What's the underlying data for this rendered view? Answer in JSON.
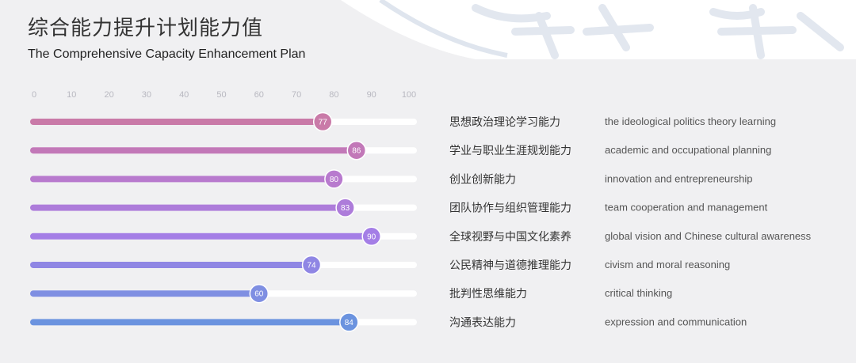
{
  "header": {
    "title_cn": "综合能力提升计划能力值",
    "title_en": "The Comprehensive Capacity Enhancement Plan"
  },
  "chart_data": {
    "type": "bar",
    "orientation": "horizontal",
    "xlim": [
      0,
      100
    ],
    "x_ticks": [
      "0",
      "10",
      "20",
      "30",
      "40",
      "50",
      "60",
      "70",
      "80",
      "90",
      "100"
    ],
    "categories": [
      "思想政治理论学习能力",
      "学业与职业生涯规划能力",
      "创业创新能力",
      "团队协作与组织管理能力",
      "全球视野与中国文化素养",
      "公民精神与道德推理能力",
      "批判性思维能力",
      "沟通表达能力"
    ],
    "categories_en": [
      "the ideological politics theory learning",
      "academic and occupational planning",
      "innovation and entrepreneurship",
      "team cooperation and management",
      "global vision and Chinese cultural awareness",
      "civism and moral reasoning",
      "critical thinking",
      "expression and communication"
    ],
    "values": [
      77,
      86,
      80,
      83,
      90,
      74,
      60,
      84
    ],
    "bar_colors": [
      "#c97aa8",
      "#c278b8",
      "#b87ace",
      "#ad7cda",
      "#a47ee6",
      "#8f86e4",
      "#7f8fe2",
      "#6b93df"
    ],
    "track_color": "#ffffff",
    "grid": false
  }
}
